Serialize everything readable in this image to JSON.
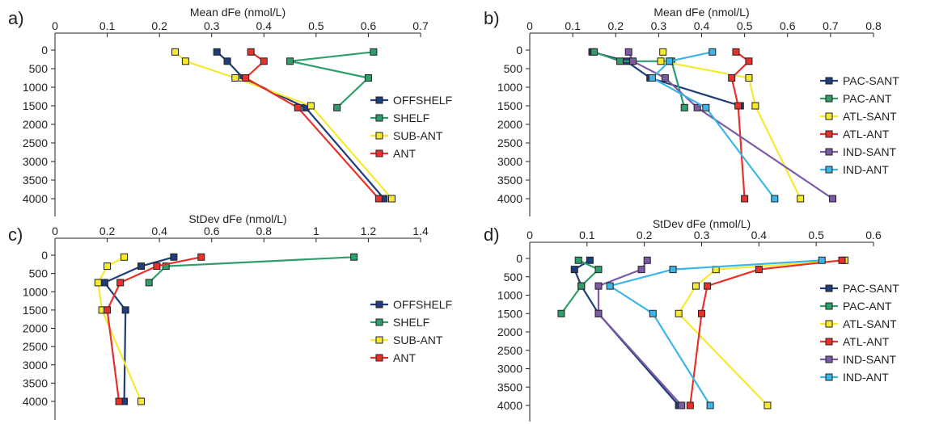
{
  "chart_data": [
    {
      "type": "line",
      "panel_label": "a)",
      "title": "Mean dFe (nmol/L)",
      "xlim": [
        0,
        0.7
      ],
      "xticks": [
        0,
        0.1,
        0.2,
        0.3,
        0.4,
        0.5,
        0.6,
        0.7
      ],
      "ylim": [
        0,
        4000
      ],
      "yticks": [
        0,
        500,
        1000,
        1500,
        2000,
        2500,
        3000,
        3500,
        4000
      ],
      "y_inverted": true,
      "legend_position": "right",
      "series": [
        {
          "name": "OFFSHELF",
          "color": "#1f3d7a",
          "points": [
            [
              0.31,
              50
            ],
            [
              0.33,
              300
            ],
            [
              0.36,
              750
            ],
            [
              0.48,
              1550
            ],
            [
              0.63,
              4000
            ]
          ]
        },
        {
          "name": "SHELF",
          "color": "#2e9e6b",
          "points": [
            [
              0.61,
              50
            ],
            [
              0.45,
              300
            ],
            [
              0.6,
              750
            ],
            [
              0.54,
              1550
            ]
          ]
        },
        {
          "name": "SUB-ANT",
          "color": "#f5ea30",
          "points": [
            [
              0.23,
              50
            ],
            [
              0.25,
              300
            ],
            [
              0.345,
              750
            ],
            [
              0.49,
              1500
            ],
            [
              0.645,
              4000
            ]
          ]
        },
        {
          "name": "ANT",
          "color": "#e8312b",
          "points": [
            [
              0.375,
              50
            ],
            [
              0.4,
              300
            ],
            [
              0.365,
              750
            ],
            [
              0.465,
              1550
            ],
            [
              0.62,
              4000
            ]
          ]
        }
      ]
    },
    {
      "type": "line",
      "panel_label": "b)",
      "title": "Mean dFe (nmol/L)",
      "xlim": [
        0,
        0.8
      ],
      "xticks": [
        0,
        0.1,
        0.2,
        0.3,
        0.4,
        0.5,
        0.6,
        0.7,
        0.8
      ],
      "ylim": [
        0,
        4000
      ],
      "yticks": [
        0,
        500,
        1000,
        1500,
        2000,
        2500,
        3000,
        3500,
        4000
      ],
      "y_inverted": true,
      "legend_position": "right",
      "series": [
        {
          "name": "PAC-SANT",
          "color": "#1f3d7a",
          "points": [
            [
              0.145,
              50
            ],
            [
              0.225,
              300
            ],
            [
              0.28,
              750
            ],
            [
              0.49,
              1500
            ]
          ]
        },
        {
          "name": "PAC-ANT",
          "color": "#2e9e6b",
          "points": [
            [
              0.15,
              50
            ],
            [
              0.21,
              300
            ],
            [
              0.33,
              300
            ],
            [
              0.36,
              1550
            ]
          ]
        },
        {
          "name": "ATL-SANT",
          "color": "#f5ea30",
          "points": [
            [
              0.31,
              50
            ],
            [
              0.305,
              300
            ],
            [
              0.51,
              750
            ],
            [
              0.525,
              1500
            ],
            [
              0.63,
              4000
            ]
          ]
        },
        {
          "name": "ATL-ANT",
          "color": "#e8312b",
          "points": [
            [
              0.48,
              50
            ],
            [
              0.51,
              300
            ],
            [
              0.47,
              750
            ],
            [
              0.485,
              1500
            ],
            [
              0.5,
              4000
            ]
          ]
        },
        {
          "name": "IND-SANT",
          "color": "#7b5aa6",
          "points": [
            [
              0.23,
              50
            ],
            [
              0.24,
              300
            ],
            [
              0.315,
              750
            ],
            [
              0.39,
              1550
            ],
            [
              0.705,
              4000
            ]
          ]
        },
        {
          "name": "IND-ANT",
          "color": "#3ab6e8",
          "points": [
            [
              0.425,
              50
            ],
            [
              0.325,
              300
            ],
            [
              0.285,
              750
            ],
            [
              0.41,
              1550
            ],
            [
              0.57,
              4000
            ]
          ]
        }
      ]
    },
    {
      "type": "line",
      "panel_label": "c)",
      "title": "StDev dFe (nmol/L)",
      "xlim": [
        0,
        1.4
      ],
      "xticks": [
        0,
        0.2,
        0.4,
        0.6,
        0.8,
        1.0,
        1.2,
        1.4
      ],
      "ylim": [
        0,
        4000
      ],
      "yticks": [
        0,
        500,
        1000,
        1500,
        2000,
        2500,
        3000,
        3500,
        4000
      ],
      "y_inverted": true,
      "legend_position": "right",
      "series": [
        {
          "name": "OFFSHELF",
          "color": "#1f3d7a",
          "points": [
            [
              0.455,
              50
            ],
            [
              0.33,
              300
            ],
            [
              0.19,
              750
            ],
            [
              0.27,
              1500
            ],
            [
              0.265,
              4000
            ]
          ]
        },
        {
          "name": "SHELF",
          "color": "#2e9e6b",
          "points": [
            [
              1.145,
              50
            ],
            [
              0.425,
              300
            ],
            [
              0.36,
              750
            ]
          ]
        },
        {
          "name": "SUB-ANT",
          "color": "#f5ea30",
          "points": [
            [
              0.265,
              50
            ],
            [
              0.2,
              300
            ],
            [
              0.165,
              750
            ],
            [
              0.18,
              1500
            ],
            [
              0.33,
              4000
            ]
          ]
        },
        {
          "name": "ANT",
          "color": "#e8312b",
          "points": [
            [
              0.56,
              50
            ],
            [
              0.39,
              300
            ],
            [
              0.25,
              750
            ],
            [
              0.2,
              1500
            ],
            [
              0.245,
              4000
            ]
          ]
        }
      ]
    },
    {
      "type": "line",
      "panel_label": "d)",
      "title": "StDev dFe (nmol/L)",
      "xlim": [
        0,
        0.6
      ],
      "xticks": [
        0,
        0.1,
        0.2,
        0.3,
        0.4,
        0.5,
        0.6
      ],
      "ylim": [
        0,
        4000
      ],
      "yticks": [
        0,
        500,
        1000,
        1500,
        2000,
        2500,
        3000,
        3500,
        4000
      ],
      "y_inverted": true,
      "legend_position": "right",
      "series": [
        {
          "name": "PAC-SANT",
          "color": "#1f3d7a",
          "points": [
            [
              0.105,
              50
            ],
            [
              0.078,
              300
            ],
            [
              0.09,
              750
            ],
            [
              0.12,
              1500
            ],
            [
              0.26,
              4000
            ]
          ]
        },
        {
          "name": "PAC-ANT",
          "color": "#2e9e6b",
          "points": [
            [
              0.085,
              50
            ],
            [
              0.12,
              300
            ],
            [
              0.09,
              750
            ],
            [
              0.055,
              1500
            ]
          ]
        },
        {
          "name": "ATL-SANT",
          "color": "#f5ea30",
          "points": [
            [
              0.55,
              50
            ],
            [
              0.325,
              300
            ],
            [
              0.29,
              750
            ],
            [
              0.26,
              1500
            ],
            [
              0.415,
              4000
            ]
          ]
        },
        {
          "name": "ATL-ANT",
          "color": "#e8312b",
          "points": [
            [
              0.545,
              50
            ],
            [
              0.4,
              300
            ],
            [
              0.31,
              750
            ],
            [
              0.3,
              1500
            ],
            [
              0.28,
              4000
            ]
          ]
        },
        {
          "name": "IND-SANT",
          "color": "#7b5aa6",
          "points": [
            [
              0.205,
              50
            ],
            [
              0.195,
              300
            ],
            [
              0.12,
              750
            ],
            [
              0.12,
              1500
            ],
            [
              0.265,
              4000
            ]
          ]
        },
        {
          "name": "IND-ANT",
          "color": "#3ab6e8",
          "points": [
            [
              0.51,
              50
            ],
            [
              0.25,
              300
            ],
            [
              0.14,
              750
            ],
            [
              0.215,
              1500
            ],
            [
              0.315,
              4000
            ]
          ]
        }
      ]
    }
  ]
}
